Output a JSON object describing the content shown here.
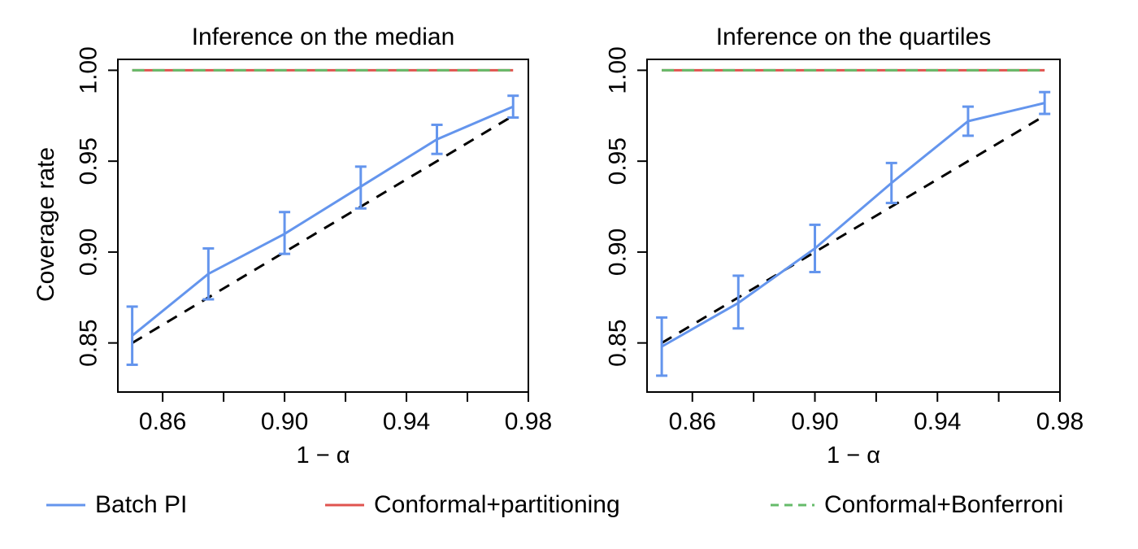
{
  "figure": {
    "background": "#ffffff"
  },
  "legend": {
    "items": [
      {
        "label": "Batch PI",
        "color": "#6495ED",
        "dash": "none"
      },
      {
        "label": "Conformal+partitioning",
        "color": "#E0544F",
        "dash": "none"
      },
      {
        "label": "Conformal+Bonferroni",
        "color": "#66BB6A",
        "dash": "dashed"
      }
    ]
  },
  "chart_data": [
    {
      "type": "line",
      "title": "Inference on the median",
      "xlabel": "1 − α",
      "ylabel": "Coverage rate",
      "xlim": [
        0.8453,
        0.98
      ],
      "ylim": [
        0.823,
        1.006
      ],
      "grid": false,
      "xticks": {
        "values": [
          0.86,
          0.88,
          0.9,
          0.92,
          0.94,
          0.96,
          0.98
        ],
        "labels": [
          "0.86",
          "",
          "0.90",
          "",
          "0.94",
          "",
          "0.98"
        ]
      },
      "yticks": {
        "values": [
          0.85,
          0.9,
          0.95,
          1.0
        ],
        "labels": [
          "0.85",
          "0.90",
          "0.95",
          "1.00"
        ]
      },
      "x": [
        0.85,
        0.875,
        0.9,
        0.925,
        0.95,
        0.975
      ],
      "series": [
        {
          "name": "Conformal+partitioning",
          "type": "hline",
          "color": "#E0544F",
          "linestyle": "solid",
          "y": 1.0,
          "x_start": 0.85,
          "x_end": 0.975
        },
        {
          "name": "Conformal+Bonferroni",
          "type": "hline",
          "color": "#66BB6A",
          "linestyle": "dashed",
          "y": 1.0,
          "x_start": 0.85,
          "x_end": 0.975
        },
        {
          "name": "Nominal level y=x",
          "type": "identity",
          "color": "#000000",
          "linestyle": "dashed",
          "x_start": 0.85,
          "x_end": 0.975
        },
        {
          "name": "Batch PI",
          "type": "line_errorbar",
          "color": "#6495ED",
          "linestyle": "solid",
          "y": [
            0.854,
            0.888,
            0.91,
            0.936,
            0.962,
            0.98
          ],
          "lower": [
            0.838,
            0.874,
            0.899,
            0.924,
            0.954,
            0.974
          ],
          "upper": [
            0.87,
            0.902,
            0.922,
            0.947,
            0.97,
            0.986
          ]
        }
      ]
    },
    {
      "type": "line",
      "title": "Inference on the quartiles",
      "xlabel": "1 − α",
      "ylabel": "",
      "xlim": [
        0.8452,
        0.98
      ],
      "ylim": [
        0.823,
        1.006
      ],
      "grid": false,
      "xticks": {
        "values": [
          0.86,
          0.88,
          0.9,
          0.92,
          0.94,
          0.96,
          0.98
        ],
        "labels": [
          "0.86",
          "",
          "0.90",
          "",
          "0.94",
          "",
          "0.98"
        ]
      },
      "yticks": {
        "values": [
          0.85,
          0.9,
          0.95,
          1.0
        ],
        "labels": [
          "0.85",
          "0.90",
          "0.95",
          "1.00"
        ]
      },
      "x": [
        0.85,
        0.875,
        0.9,
        0.925,
        0.95,
        0.975
      ],
      "series": [
        {
          "name": "Conformal+partitioning",
          "type": "hline",
          "color": "#E0544F",
          "linestyle": "solid",
          "y": 1.0,
          "x_start": 0.85,
          "x_end": 0.975
        },
        {
          "name": "Conformal+Bonferroni",
          "type": "hline",
          "color": "#66BB6A",
          "linestyle": "dashed",
          "y": 1.0,
          "x_start": 0.85,
          "x_end": 0.975
        },
        {
          "name": "Nominal level y=x",
          "type": "identity",
          "color": "#000000",
          "linestyle": "dashed",
          "x_start": 0.85,
          "x_end": 0.975
        },
        {
          "name": "Batch PI",
          "type": "line_errorbar",
          "color": "#6495ED",
          "linestyle": "solid",
          "y": [
            0.848,
            0.872,
            0.902,
            0.938,
            0.972,
            0.982
          ],
          "lower": [
            0.832,
            0.858,
            0.889,
            0.927,
            0.964,
            0.976
          ],
          "upper": [
            0.864,
            0.887,
            0.915,
            0.949,
            0.98,
            0.988
          ]
        }
      ]
    }
  ]
}
